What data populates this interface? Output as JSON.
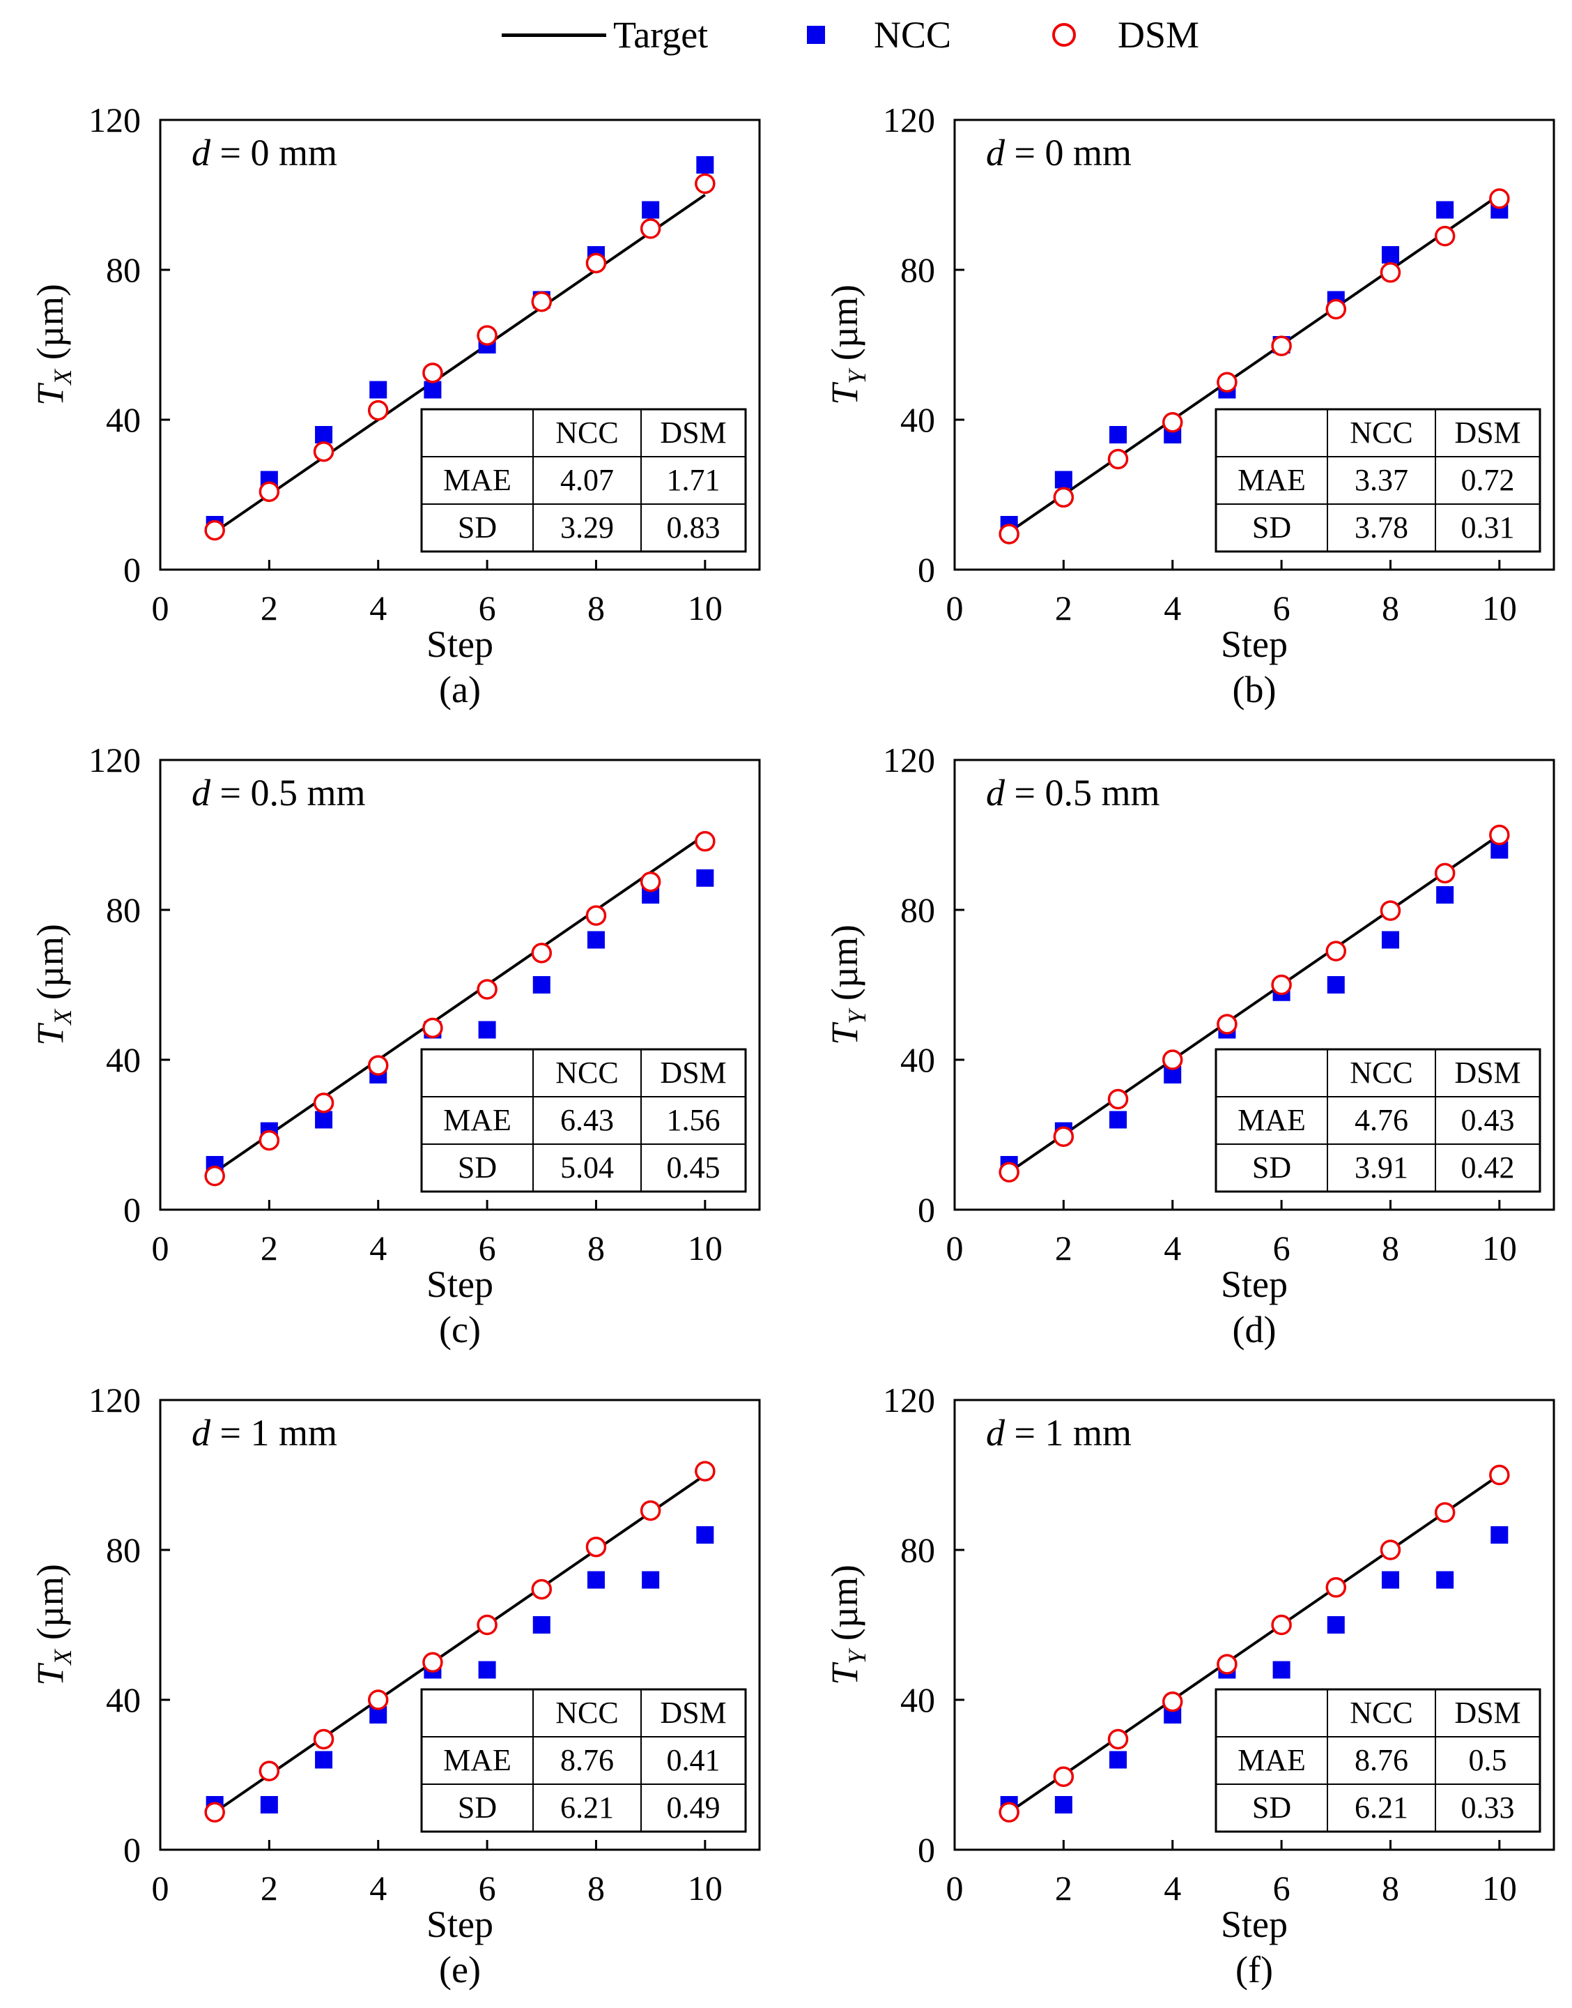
{
  "legend": {
    "target_label": "Target",
    "ncc_label": "NCC",
    "dsm_label": "DSM"
  },
  "colors": {
    "ncc": "#0000ee",
    "dsm": "#ee0000",
    "target": "#000000"
  },
  "chart_data": [
    {
      "type": "scatter",
      "panel": "(a)",
      "annotation_var": "d",
      "annotation_text": " = 0 mm",
      "xlabel": "Step",
      "ylabel_main": "T",
      "ylabel_sub": "X",
      "ylabel_unit": " (µm)",
      "xlim": [
        0,
        11
      ],
      "ylim": [
        0,
        120
      ],
      "xticks": [
        0,
        2,
        4,
        6,
        8,
        10
      ],
      "yticks": [
        0,
        40,
        80,
        120
      ],
      "x": [
        1,
        2,
        3,
        4,
        5,
        6,
        7,
        8,
        9,
        10
      ],
      "series": [
        {
          "name": "Target",
          "values": [
            10,
            20,
            30,
            40,
            50,
            60,
            70,
            80,
            90,
            100
          ]
        },
        {
          "name": "NCC",
          "values": [
            12,
            24,
            36,
            48,
            48,
            60,
            72,
            84,
            96,
            108
          ]
        },
        {
          "name": "DSM",
          "values": [
            10.5,
            20.8,
            31.5,
            42.5,
            52.5,
            62.5,
            71.5,
            81.8,
            91,
            103
          ]
        }
      ],
      "table": {
        "headers": [
          "",
          "NCC",
          "DSM"
        ],
        "rows": [
          [
            "MAE",
            "4.07",
            "1.71"
          ],
          [
            "SD",
            "3.29",
            "0.83"
          ]
        ]
      }
    },
    {
      "type": "scatter",
      "panel": "(b)",
      "annotation_var": "d",
      "annotation_text": " = 0 mm",
      "xlabel": "Step",
      "ylabel_main": "T",
      "ylabel_sub": "Y",
      "ylabel_unit": " (µm)",
      "xlim": [
        0,
        11
      ],
      "ylim": [
        0,
        120
      ],
      "xticks": [
        0,
        2,
        4,
        6,
        8,
        10
      ],
      "yticks": [
        0,
        40,
        80,
        120
      ],
      "x": [
        1,
        2,
        3,
        4,
        5,
        6,
        7,
        8,
        9,
        10
      ],
      "series": [
        {
          "name": "Target",
          "values": [
            10,
            20,
            30,
            40,
            50,
            60,
            70,
            80,
            90,
            100
          ]
        },
        {
          "name": "NCC",
          "values": [
            12,
            24,
            36,
            36,
            48,
            60,
            72,
            84,
            96,
            96
          ]
        },
        {
          "name": "DSM",
          "values": [
            9.5,
            19.3,
            29.5,
            39.3,
            50,
            59.7,
            69.5,
            79.3,
            89,
            99
          ]
        }
      ],
      "table": {
        "headers": [
          "",
          "NCC",
          "DSM"
        ],
        "rows": [
          [
            "MAE",
            "3.37",
            "0.72"
          ],
          [
            "SD",
            "3.78",
            "0.31"
          ]
        ]
      }
    },
    {
      "type": "scatter",
      "panel": "(c)",
      "annotation_var": "d",
      "annotation_text": " = 0.5 mm",
      "xlabel": "Step",
      "ylabel_main": "T",
      "ylabel_sub": "X",
      "ylabel_unit": " (µm)",
      "xlim": [
        0,
        11
      ],
      "ylim": [
        0,
        120
      ],
      "xticks": [
        0,
        2,
        4,
        6,
        8,
        10
      ],
      "yticks": [
        0,
        40,
        80,
        120
      ],
      "x": [
        1,
        2,
        3,
        4,
        5,
        6,
        7,
        8,
        9,
        10
      ],
      "series": [
        {
          "name": "Target",
          "values": [
            10,
            20,
            30,
            40,
            50,
            60,
            70,
            80,
            90,
            100
          ]
        },
        {
          "name": "NCC",
          "values": [
            12,
            21,
            24,
            36,
            48,
            48,
            60,
            72,
            84,
            88.5
          ]
        },
        {
          "name": "DSM",
          "values": [
            9,
            18.5,
            28.5,
            38.5,
            48.5,
            58.8,
            68.5,
            78.5,
            87.5,
            98.3
          ]
        }
      ],
      "table": {
        "headers": [
          "",
          "NCC",
          "DSM"
        ],
        "rows": [
          [
            "MAE",
            "6.43",
            "1.56"
          ],
          [
            "SD",
            "5.04",
            "0.45"
          ]
        ]
      }
    },
    {
      "type": "scatter",
      "panel": "(d)",
      "annotation_var": "d",
      "annotation_text": " = 0.5 mm",
      "xlabel": "Step",
      "ylabel_main": "T",
      "ylabel_sub": "Y",
      "ylabel_unit": " (µm)",
      "xlim": [
        0,
        11
      ],
      "ylim": [
        0,
        120
      ],
      "xticks": [
        0,
        2,
        4,
        6,
        8,
        10
      ],
      "yticks": [
        0,
        40,
        80,
        120
      ],
      "x": [
        1,
        2,
        3,
        4,
        5,
        6,
        7,
        8,
        9,
        10
      ],
      "series": [
        {
          "name": "Target",
          "values": [
            10,
            20,
            30,
            40,
            50,
            60,
            70,
            80,
            90,
            100
          ]
        },
        {
          "name": "NCC",
          "values": [
            12,
            21,
            24,
            36,
            48,
            58,
            60,
            72,
            84,
            96
          ]
        },
        {
          "name": "DSM",
          "values": [
            10,
            19.5,
            29.5,
            40,
            49.5,
            60,
            69,
            79.8,
            89.8,
            100
          ]
        }
      ],
      "table": {
        "headers": [
          "",
          "NCC",
          "DSM"
        ],
        "rows": [
          [
            "MAE",
            "4.76",
            "0.43"
          ],
          [
            "SD",
            "3.91",
            "0.42"
          ]
        ]
      }
    },
    {
      "type": "scatter",
      "panel": "(e)",
      "annotation_var": "d",
      "annotation_text": " = 1 mm",
      "xlabel": "Step",
      "ylabel_main": "T",
      "ylabel_sub": "X",
      "ylabel_unit": " (µm)",
      "xlim": [
        0,
        11
      ],
      "ylim": [
        0,
        120
      ],
      "xticks": [
        0,
        2,
        4,
        6,
        8,
        10
      ],
      "yticks": [
        0,
        40,
        80,
        120
      ],
      "x": [
        1,
        2,
        3,
        4,
        5,
        6,
        7,
        8,
        9,
        10
      ],
      "series": [
        {
          "name": "Target",
          "values": [
            10,
            20,
            30,
            40,
            50,
            60,
            70,
            80,
            90,
            100
          ]
        },
        {
          "name": "NCC",
          "values": [
            12,
            12,
            24,
            36,
            48,
            48,
            60,
            72,
            72,
            84
          ]
        },
        {
          "name": "DSM",
          "values": [
            10,
            21,
            29.5,
            40,
            50,
            60,
            69.5,
            80.8,
            90.5,
            101
          ]
        }
      ],
      "table": {
        "headers": [
          "",
          "NCC",
          "DSM"
        ],
        "rows": [
          [
            "MAE",
            "8.76",
            "0.41"
          ],
          [
            "SD",
            "6.21",
            "0.49"
          ]
        ]
      }
    },
    {
      "type": "scatter",
      "panel": "(f)",
      "annotation_var": "d",
      "annotation_text": " = 1 mm",
      "xlabel": "Step",
      "ylabel_main": "T",
      "ylabel_sub": "Y",
      "ylabel_unit": " (µm)",
      "xlim": [
        0,
        11
      ],
      "ylim": [
        0,
        120
      ],
      "xticks": [
        0,
        2,
        4,
        6,
        8,
        10
      ],
      "yticks": [
        0,
        40,
        80,
        120
      ],
      "x": [
        1,
        2,
        3,
        4,
        5,
        6,
        7,
        8,
        9,
        10
      ],
      "series": [
        {
          "name": "Target",
          "values": [
            10,
            20,
            30,
            40,
            50,
            60,
            70,
            80,
            90,
            100
          ]
        },
        {
          "name": "NCC",
          "values": [
            12,
            12,
            24,
            36,
            48,
            48,
            60,
            72,
            72,
            84
          ]
        },
        {
          "name": "DSM",
          "values": [
            10,
            19.5,
            29.5,
            39.5,
            49.5,
            60,
            70,
            80,
            90,
            100
          ]
        }
      ],
      "table": {
        "headers": [
          "",
          "NCC",
          "DSM"
        ],
        "rows": [
          [
            "MAE",
            "8.76",
            "0.5"
          ],
          [
            "SD",
            "6.21",
            "0.33"
          ]
        ]
      }
    }
  ]
}
